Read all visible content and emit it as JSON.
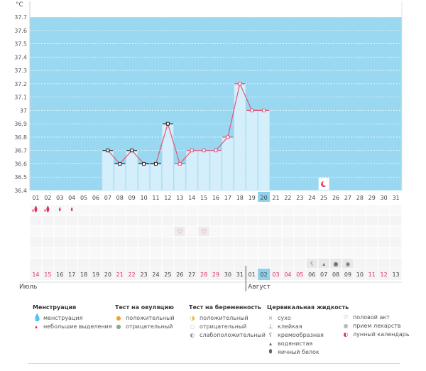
{
  "chart_data": {
    "type": "line",
    "ylabel": "°C",
    "yticks": [
      "37.7",
      "37.6",
      "37.5",
      "37.4",
      "37.3",
      "37.2",
      "37.1",
      "37",
      "36.9",
      "36.8",
      "36.7",
      "36.6",
      "36.5",
      "36.4"
    ],
    "ylim": [
      36.4,
      37.7
    ],
    "grid": true,
    "x_top": [
      "01",
      "02",
      "03",
      "04",
      "05",
      "06",
      "07",
      "08",
      "09",
      "10",
      "11",
      "12",
      "13",
      "14",
      "15",
      "16",
      "17",
      "18",
      "19",
      "20",
      "21",
      "22",
      "23",
      "24",
      "25",
      "26",
      "27",
      "28",
      "29",
      "30",
      "31"
    ],
    "x_bottom": [
      "14",
      "15",
      "16",
      "17",
      "18",
      "19",
      "20",
      "21",
      "22",
      "23",
      "24",
      "25",
      "26",
      "27",
      "28",
      "29",
      "30",
      "31",
      "01",
      "02",
      "03",
      "04",
      "05",
      "06",
      "07",
      "08",
      "09",
      "10",
      "11",
      "12",
      "13"
    ],
    "month_labels": [
      "Июль",
      "Август"
    ],
    "current_day": "20",
    "series": [
      {
        "x": [
          "07",
          "08",
          "09",
          "10",
          "11",
          "12",
          "13",
          "14",
          "15",
          "16",
          "17",
          "18",
          "19",
          "20"
        ],
        "values": [
          36.7,
          36.6,
          36.7,
          36.6,
          36.6,
          36.9,
          36.6,
          36.7,
          36.7,
          36.7,
          36.8,
          37.2,
          37.0,
          37.0
        ]
      }
    ]
  },
  "legend": {
    "menstruation": {
      "title": "Менструация",
      "items": [
        "менструация",
        "небольшие выделения"
      ]
    },
    "ovulation": {
      "title": "Тест на овуляцию",
      "items": [
        "положительный",
        "отрицательный"
      ]
    },
    "pregnancy": {
      "title": "Тест на беременность",
      "items": [
        "положительный",
        "отрицательный",
        "слабоположительный"
      ]
    },
    "cervical": {
      "title": "Цервикальная жидкость",
      "items": [
        "сухо",
        "клейкая",
        "кремообразная",
        "водянистая",
        "яичный белок"
      ]
    },
    "other": {
      "items": [
        "половой акт",
        "прием лекарств",
        "лунный календарь"
      ]
    }
  },
  "colors": {
    "plot_bg": "#99d8f0",
    "bar": "#d4eefb",
    "line": "#e0567a",
    "accent_red": "#e03060",
    "highlight": "#8fd0ec"
  },
  "icons": {
    "menstruation": "drop-icon",
    "spotting": "small-drop-icon",
    "ovulation_positive": "orange-dot-icon",
    "ovulation_negative": "green-dot-icon",
    "pregnancy_positive": "pregnancy-positive-icon",
    "pregnancy_negative": "pregnancy-negative-icon",
    "pregnancy_weak": "pregnancy-weak-icon",
    "dry": "cross-icon",
    "sticky": "sticky-icon",
    "creamy": "creamy-icon",
    "watery": "water-drop-icon",
    "egg_white": "egg-white-icon",
    "intercourse": "heart-icon",
    "medication": "pill-icon",
    "moon": "moon-icon"
  },
  "markers": {
    "menstruation_days": [
      "01",
      "02",
      "03",
      "04"
    ],
    "heavy_days": [
      "01",
      "02"
    ],
    "intercourse_days": [
      "13",
      "15"
    ],
    "cervical_days": [
      {
        "day": "24",
        "type": "sticky"
      },
      {
        "day": "25",
        "type": "watery"
      },
      {
        "day": "26",
        "type": "egg_white"
      },
      {
        "day": "27",
        "type": "creamy"
      }
    ],
    "moon_day": "25"
  }
}
